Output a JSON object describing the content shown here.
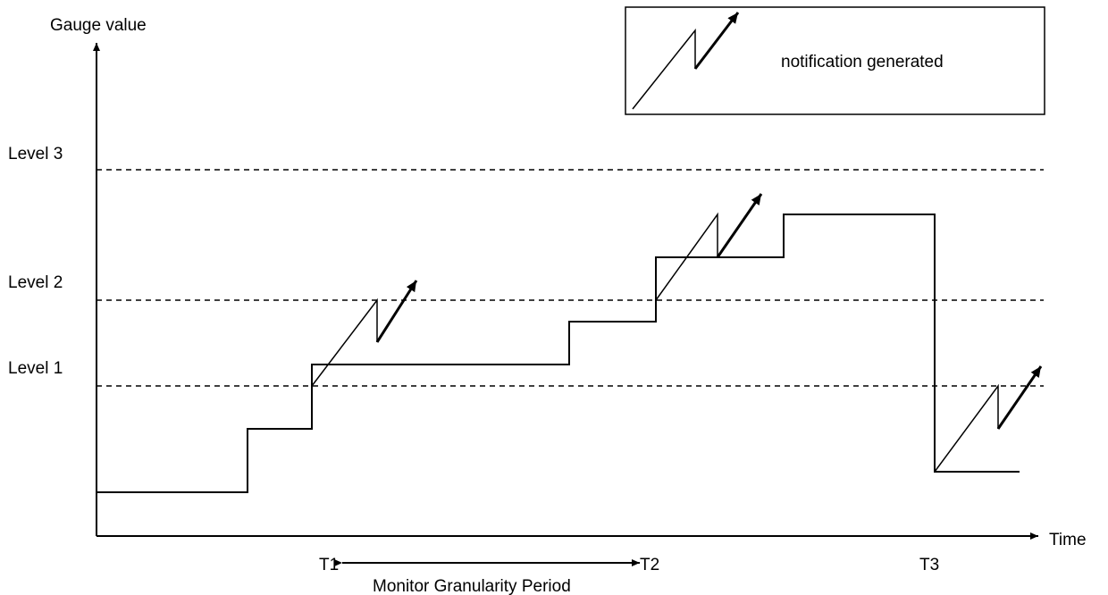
{
  "diagram": {
    "y_axis_label": "Gauge value",
    "x_axis_label": "Time",
    "levels": [
      {
        "label": "Level 3"
      },
      {
        "label": "Level 2"
      },
      {
        "label": "Level 1"
      }
    ],
    "time_markers": [
      {
        "label": "T1"
      },
      {
        "label": "T2"
      },
      {
        "label": "T3"
      }
    ],
    "period_label": "Monitor Granularity Period",
    "legend": {
      "label": "notification generated"
    }
  }
}
